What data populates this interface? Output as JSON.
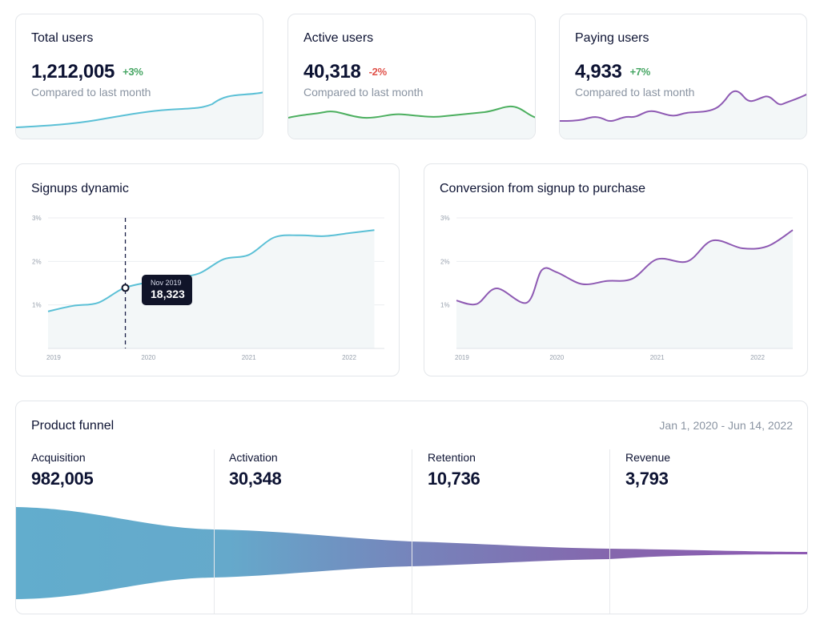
{
  "kpis": [
    {
      "title": "Total users",
      "value": "1,212,005",
      "delta": "+3%",
      "delta_color": "#47a664",
      "subtitle": "Compared to last month",
      "line_color": "#5bc0d6"
    },
    {
      "title": "Active users",
      "value": "40,318",
      "delta": "-2%",
      "delta_color": "#e0524a",
      "subtitle": "Compared to last month",
      "line_color": "#4caf5f"
    },
    {
      "title": "Paying users",
      "value": "4,933",
      "delta": "+7%",
      "delta_color": "#47a664",
      "subtitle": "Compared to last month",
      "line_color": "#8e5ab3"
    }
  ],
  "signups": {
    "title": "Signups dynamic",
    "line_color": "#5bc0d6",
    "y_ticks": [
      "3%",
      "2%",
      "1%"
    ],
    "x_ticks": [
      "2019",
      "2020",
      "2021",
      "2022"
    ],
    "tooltip": {
      "date": "Nov 2019",
      "value": "18,323"
    }
  },
  "conversion": {
    "title": "Conversion from signup to purchase",
    "line_color": "#8e5ab3",
    "y_ticks": [
      "3%",
      "2%",
      "1%"
    ],
    "x_ticks": [
      "2019",
      "2020",
      "2021",
      "2022"
    ]
  },
  "funnel": {
    "title": "Product funnel",
    "date_range": "Jan 1, 2020 - Jun 14, 2022",
    "stages": [
      {
        "label": "Acquisition",
        "value": "982,005"
      },
      {
        "label": "Activation",
        "value": "30,348"
      },
      {
        "label": "Retention",
        "value": "10,736"
      },
      {
        "label": "Revenue",
        "value": "3,793"
      }
    ],
    "colors": [
      "#65a9cb",
      "#6f8bbd",
      "#8073b2",
      "#8e5ab3"
    ]
  },
  "chart_data": [
    {
      "type": "line",
      "title": "Signups dynamic",
      "x": [
        2019.0,
        2019.25,
        2019.5,
        2019.75,
        2020.0,
        2020.25,
        2020.5,
        2020.75,
        2021.0,
        2021.25,
        2021.5,
        2021.75,
        2022.0,
        2022.25
      ],
      "values": [
        0.85,
        0.98,
        1.05,
        1.38,
        1.52,
        1.62,
        1.72,
        2.05,
        2.15,
        2.55,
        2.6,
        2.58,
        2.65,
        2.72
      ],
      "ylabel": "%",
      "ylim": [
        0,
        3
      ],
      "xlim": [
        2019,
        2022.35
      ],
      "annotation": {
        "x": 2019.77,
        "label": "Nov 2019",
        "value": "18,323"
      }
    },
    {
      "type": "line",
      "title": "Conversion from signup to purchase",
      "x": [
        2019.0,
        2019.2,
        2019.4,
        2019.7,
        2019.85,
        2020.0,
        2020.25,
        2020.5,
        2020.75,
        2021.0,
        2021.3,
        2021.55,
        2021.85,
        2022.1,
        2022.35
      ],
      "values": [
        1.1,
        1.02,
        1.38,
        1.05,
        1.8,
        1.75,
        1.48,
        1.55,
        1.6,
        2.05,
        2.0,
        2.48,
        2.3,
        2.35,
        2.72
      ],
      "ylabel": "%",
      "ylim": [
        0,
        3
      ],
      "xlim": [
        2019,
        2022.35
      ]
    },
    {
      "type": "area",
      "title": "Product funnel",
      "categories": [
        "Acquisition",
        "Activation",
        "Retention",
        "Revenue"
      ],
      "values": [
        982005,
        30348,
        10736,
        3793
      ]
    }
  ]
}
